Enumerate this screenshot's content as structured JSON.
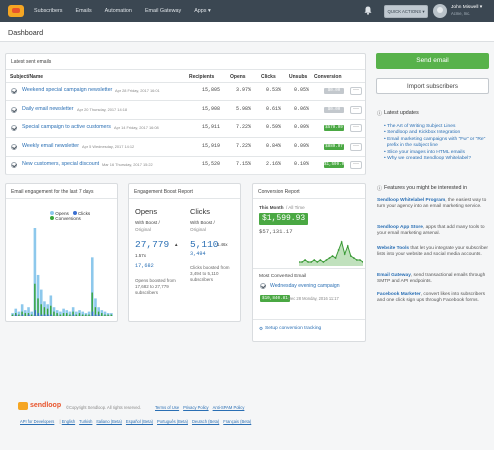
{
  "nav": {
    "items": [
      "Subscribers",
      "Emails",
      "Automation",
      "Email Gateway",
      "Apps ▾"
    ],
    "quick_actions": "QUICK ACTIONS ▾",
    "user_name": "John Miswell ▾",
    "user_org": "Acme, Inc."
  },
  "page": {
    "title": "Dashboard"
  },
  "sent": {
    "title": "Latest sent emails",
    "headers": [
      "Subject/Name",
      "Recipients",
      "Opens",
      "Clicks",
      "Unsubs",
      "Conversion"
    ],
    "rows": [
      {
        "name": "Weekend special campaign newsletter",
        "date": "Apr 28 Friday, 2017 16:01",
        "recipients": "15,805",
        "opens": "3.97%",
        "clicks": "0.53%",
        "unsubs": "0.05%",
        "conversion": "$0.00",
        "conv_color": "#c3c8cd"
      },
      {
        "name": "Daily email newsletter",
        "date": "Apr 20 Thursday, 2017 14:18",
        "recipients": "15,908",
        "opens": "5.98%",
        "clicks": "0.61%",
        "unsubs": "0.06%",
        "conversion": "$0.00",
        "conv_color": "#c3c8cd"
      },
      {
        "name": "Special campaign to active customers",
        "date": "Apr 14 Friday, 2017 16:08",
        "recipients": "15,911",
        "opens": "7.22%",
        "clicks": "0.59%",
        "unsubs": "0.09%",
        "conversion": "$579.99",
        "conv_color": "#4aa843"
      },
      {
        "name": "Weekly email newsletter",
        "date": "Apr 5 Wednesday, 2017 14:12",
        "recipients": "15,919",
        "opens": "7.22%",
        "clicks": "0.84%",
        "unsubs": "0.09%",
        "conversion": "$889.97",
        "conv_color": "#4aa843"
      },
      {
        "name": "New customers, special discount",
        "date": "Mar 16 Thursday, 2017 15:22",
        "recipients": "15,520",
        "opens": "7.15%",
        "clicks": "2.16%",
        "unsubs": "0.10%",
        "conversion": "$1,599.93",
        "conv_color": "#4aa843"
      }
    ]
  },
  "engagement": {
    "title": "Email engagement for the last 7 days",
    "legend": [
      "Opens",
      "Clicks",
      "Conversions"
    ],
    "colors": {
      "opens": "#8dc8ec",
      "clicks": "#3b6fd0",
      "conversions": "#3aa63a"
    }
  },
  "chart_data": {
    "type": "bar",
    "title": "Email engagement for the last 7 days",
    "series": [
      {
        "name": "Opens",
        "values": [
          2,
          5,
          3,
          8,
          4,
          6,
          3,
          60,
          28,
          18,
          10,
          8,
          14,
          6,
          4,
          3,
          5,
          4,
          3,
          6,
          3,
          4,
          3,
          2,
          3,
          40,
          12,
          6,
          4,
          3,
          2,
          2
        ]
      },
      {
        "name": "Clicks",
        "values": [
          0,
          1,
          0,
          1,
          0,
          1,
          0,
          4,
          2,
          1,
          1,
          1,
          1,
          0,
          0,
          0,
          0,
          0,
          0,
          1,
          0,
          0,
          0,
          0,
          0,
          3,
          1,
          1,
          0,
          0,
          0,
          0
        ]
      },
      {
        "name": "Conversions",
        "values": [
          1,
          2,
          1,
          3,
          2,
          2,
          1,
          22,
          12,
          8,
          6,
          5,
          7,
          3,
          2,
          1,
          2,
          2,
          1,
          3,
          1,
          2,
          1,
          1,
          1,
          16,
          6,
          3,
          2,
          1,
          1,
          1
        ]
      }
    ]
  },
  "boost": {
    "title": "Engagement Boost Report",
    "opens_h": "Opens",
    "clicks_h": "Clicks",
    "with_boost": "With Boost /",
    "original": "Original",
    "opens_value": "27,779",
    "opens_pct": "1.57x",
    "opens_original": "17,682",
    "opens_desc": "Opens boosted from 17,682 to 27,779 subscribers",
    "clicks_value": "5,110",
    "clicks_pct": "1.46x",
    "clicks_original": "3,494",
    "clicks_desc": "Clicks boosted from 3,494 to 5,110 subscribers"
  },
  "conversion": {
    "title": "Conversion Report",
    "period": "This Month",
    "period_alt": "/ All Time",
    "month_value": "$1,599.93",
    "all_time": "$57,131.17",
    "most_label": "Most Converted Email",
    "top_email": "Wednesday evening campaign",
    "top_value": "$10,840.81",
    "top_date": "Dec 28 Monday, 2016 11:17",
    "setup": "Setup conversion tracking",
    "line_values": [
      2,
      2,
      3,
      2,
      2,
      3,
      2,
      3,
      2,
      3,
      4,
      5,
      4,
      8,
      12,
      6,
      10,
      5,
      4,
      3,
      3,
      2
    ]
  },
  "sidebar": {
    "send": "Send email",
    "import": "Import subscribers",
    "updates_title": "Latest updates",
    "updates": [
      "The Art of Writing Subject Lines",
      "Sendloop and Kickbox Integration",
      "Email marketing campaigns with \"Fw\" or \"Re\"",
      "prefix in the subject line",
      "Slice your images into HTML emails",
      "Why we created Sendloop Whitelabel?"
    ],
    "features_title": "Features you might be interested in",
    "features": [
      {
        "name": "Sendloop Whitelabel Program",
        "text": ", the easiest way to turn your agency into an email marketing service."
      },
      {
        "name": "Sendloop App Store",
        "text": ", apps that add many tools to your email marketing arsenal."
      },
      {
        "name": "Website Tools",
        "text": " that let you integrate your subscriber lists into your website and social media accounts."
      },
      {
        "name": "Email Gateway",
        "text": ", send transactional emails through SMTP and API endpoints."
      },
      {
        "name": "Facebook Marketer",
        "text": ", convert likes into subscribers and one click sign ups through Facebook forms."
      }
    ]
  },
  "footer": {
    "brand": "sendloop",
    "copyright": "©Copyright Sendloop. All rights reserved.",
    "links": [
      "Terms of Use",
      "Privacy Policy",
      "Anti-SPAM Policy"
    ],
    "links2": [
      "API for Developers",
      "English",
      "Turkish",
      "Italiano (Beta)",
      "Español (Beta)",
      "Português (Beta)",
      "Deutsch (Beta)",
      "Français (Beta)"
    ]
  }
}
